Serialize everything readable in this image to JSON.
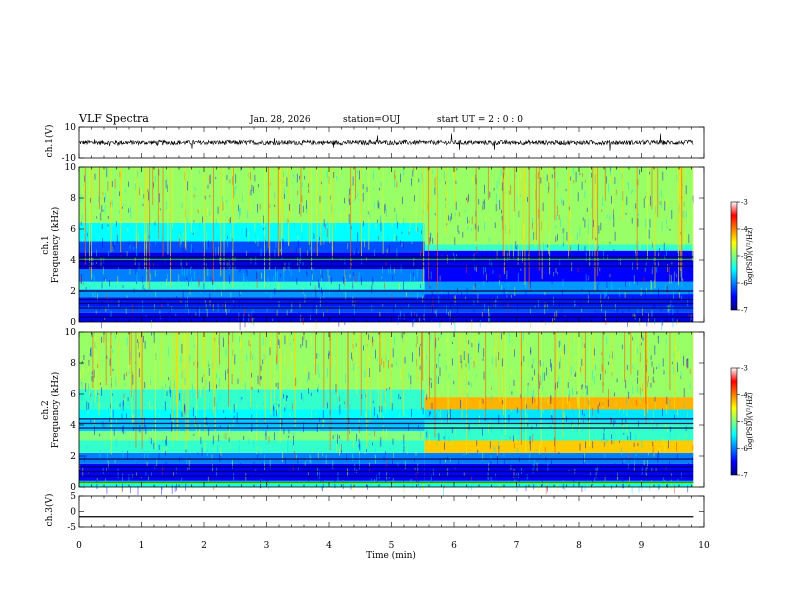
{
  "header": {
    "title": "VLF Spectra",
    "date": "Jan. 28, 2026",
    "station": "station=OUJ",
    "start_ut": "start UT =  2 : 0 : 0"
  },
  "chart_data": [
    {
      "type": "line",
      "name": "ch1-waveform",
      "ylabel": "ch.1(V)",
      "ylim": [
        -10,
        10
      ],
      "yticks": [
        "10",
        "-10"
      ],
      "xlim": [
        0,
        10
      ],
      "baseline": 0,
      "amplitude_typical": 1.5
    },
    {
      "type": "heatmap",
      "name": "ch1-spectrogram",
      "ylabel_line1": "ch.1",
      "ylabel_line2": "Frequency (kHz)",
      "ylim": [
        0,
        10
      ],
      "yticks": [
        "0",
        "2",
        "4",
        "6",
        "8",
        "10"
      ],
      "xlim": [
        0,
        10
      ],
      "data_end_min": 9.83,
      "transition_min": 5.53,
      "colorbar": {
        "label": "log(PSD)(V²/Hz)",
        "range": [
          -7,
          -3
        ],
        "ticks": [
          "-3",
          "-4",
          "-5",
          "-6",
          "-7"
        ]
      },
      "bands_before": [
        {
          "from": 0.0,
          "to": 0.6,
          "level": -6.6
        },
        {
          "from": 0.6,
          "to": 1.0,
          "level": -6.2
        },
        {
          "from": 1.0,
          "to": 1.6,
          "level": -6.4
        },
        {
          "from": 1.6,
          "to": 2.1,
          "level": -5.9
        },
        {
          "from": 2.1,
          "to": 2.6,
          "level": -5.3
        },
        {
          "from": 2.6,
          "to": 3.4,
          "level": -6.0
        },
        {
          "from": 3.4,
          "to": 4.5,
          "level": -6.6
        },
        {
          "from": 4.5,
          "to": 5.2,
          "level": -6.2
        },
        {
          "from": 5.2,
          "to": 6.4,
          "level": -5.5
        },
        {
          "from": 6.4,
          "to": 10.0,
          "level": -4.9
        }
      ],
      "bands_after": [
        {
          "from": 0.0,
          "to": 0.6,
          "level": -6.6
        },
        {
          "from": 0.6,
          "to": 1.0,
          "level": -6.2
        },
        {
          "from": 1.0,
          "to": 1.8,
          "level": -6.4
        },
        {
          "from": 1.8,
          "to": 2.6,
          "level": -5.9
        },
        {
          "from": 2.6,
          "to": 4.6,
          "level": -6.5
        },
        {
          "from": 4.6,
          "to": 5.0,
          "level": -5.3
        },
        {
          "from": 5.0,
          "to": 10.0,
          "level": -4.9
        }
      ]
    },
    {
      "type": "heatmap",
      "name": "ch2-spectrogram",
      "ylabel_line1": "ch.2",
      "ylabel_line2": "Frequency (kHz)",
      "ylim": [
        0,
        10
      ],
      "yticks": [
        "0",
        "2",
        "4",
        "6",
        "8",
        "10"
      ],
      "xlim": [
        0,
        10
      ],
      "data_end_min": 9.83,
      "transition_min": 5.53,
      "colorbar": {
        "label": "log(PSD)(V²/Hz)",
        "range": [
          -7,
          -3
        ],
        "ticks": [
          "-3",
          "-4",
          "-5",
          "-6",
          "-7"
        ]
      },
      "bands_before": [
        {
          "from": 0.0,
          "to": 0.4,
          "level": -5.4
        },
        {
          "from": 0.4,
          "to": 1.5,
          "level": -6.5
        },
        {
          "from": 1.5,
          "to": 2.2,
          "level": -6.0
        },
        {
          "from": 2.2,
          "to": 3.0,
          "level": -5.3
        },
        {
          "from": 3.0,
          "to": 3.6,
          "level": -5.0
        },
        {
          "from": 3.6,
          "to": 4.4,
          "level": -5.7
        },
        {
          "from": 4.4,
          "to": 5.0,
          "level": -5.5
        },
        {
          "from": 5.0,
          "to": 6.3,
          "level": -5.3
        },
        {
          "from": 6.3,
          "to": 10.0,
          "level": -4.9
        }
      ],
      "bands_after": [
        {
          "from": 0.0,
          "to": 0.4,
          "level": -5.4
        },
        {
          "from": 0.4,
          "to": 1.5,
          "level": -6.5
        },
        {
          "from": 1.5,
          "to": 2.2,
          "level": -6.0
        },
        {
          "from": 2.2,
          "to": 3.0,
          "level": -4.3
        },
        {
          "from": 3.0,
          "to": 4.2,
          "level": -5.3
        },
        {
          "from": 4.2,
          "to": 5.0,
          "level": -5.6
        },
        {
          "from": 5.0,
          "to": 5.8,
          "level": -4.2
        },
        {
          "from": 5.8,
          "to": 10.0,
          "level": -4.9
        }
      ]
    },
    {
      "type": "line",
      "name": "ch3-waveform",
      "ylabel": "ch.3(V)",
      "ylim": [
        -5,
        5
      ],
      "yticks": [
        "5",
        "0",
        "-5"
      ],
      "xlim": [
        0,
        10
      ],
      "xlabel": "Time (min)",
      "xticks": [
        "0",
        "1",
        "2",
        "3",
        "4",
        "5",
        "6",
        "7",
        "8",
        "9",
        "10"
      ],
      "constant_value": -1.7
    }
  ]
}
